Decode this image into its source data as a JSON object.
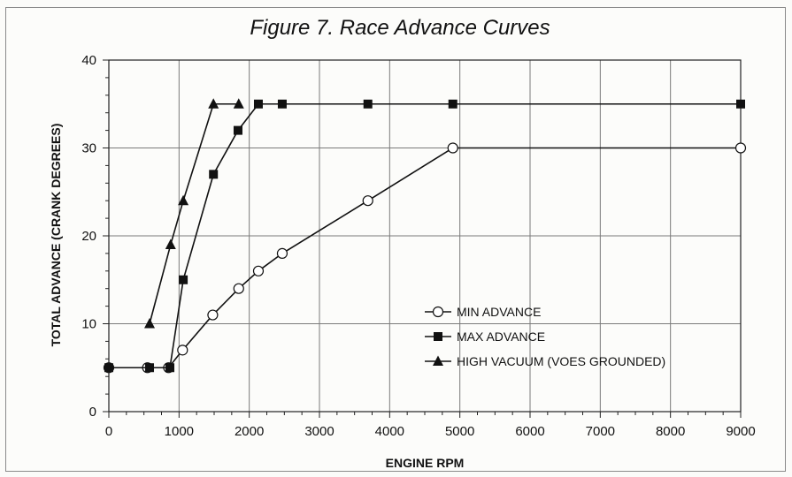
{
  "chart_data": {
    "type": "line",
    "title": "Figure 7.  Race Advance Curves",
    "xlabel": "ENGINE RPM",
    "ylabel": "TOTAL ADVANCE (CRANK DEGREES)",
    "xlim": [
      0,
      9000
    ],
    "ylim": [
      0,
      40
    ],
    "x_ticks": [
      0,
      1000,
      2000,
      3000,
      4000,
      5000,
      6000,
      7000,
      8000,
      9000
    ],
    "y_ticks": [
      0,
      10,
      20,
      30,
      40
    ],
    "grid": true,
    "legend_position": "bottom-right",
    "series": [
      {
        "name": "MIN ADVANCE",
        "marker": "open-circle",
        "color": "#111111",
        "x": [
          0,
          550,
          850,
          1050,
          1480,
          1850,
          2130,
          2470,
          3690,
          4900,
          9000
        ],
        "y": [
          5,
          5,
          5,
          7,
          11,
          14,
          16,
          18,
          24,
          30,
          30
        ]
      },
      {
        "name": "MAX ADVANCE",
        "marker": "filled-square",
        "color": "#111111",
        "x": [
          0,
          580,
          870,
          1060,
          1490,
          1840,
          2130,
          2470,
          3690,
          4900,
          9000
        ],
        "y": [
          5,
          5,
          5,
          15,
          27,
          32,
          35,
          35,
          35,
          35,
          35
        ]
      },
      {
        "name": "HIGH VACUUM (VOES GROUNDED)",
        "marker": "filled-triangle",
        "color": "#111111",
        "x": [
          580,
          880,
          1060,
          1490,
          1850
        ],
        "y": [
          10,
          19,
          24,
          35,
          35
        ]
      }
    ]
  }
}
